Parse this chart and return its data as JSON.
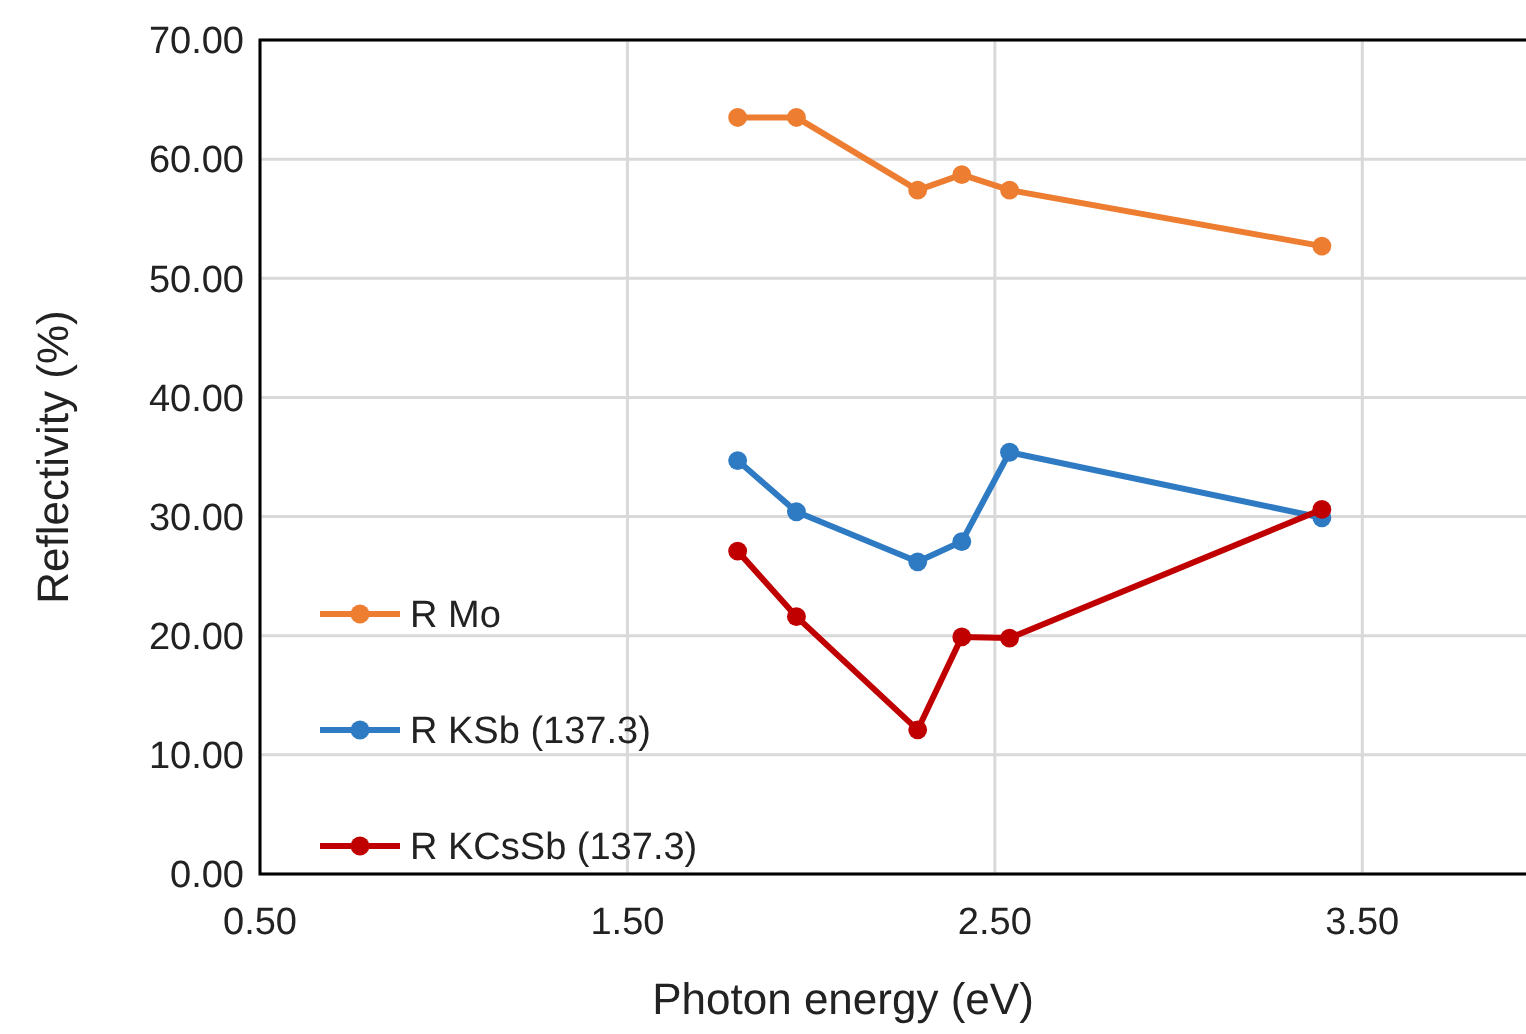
{
  "chart_data": {
    "type": "line",
    "xlabel": "Photon energy (eV)",
    "ylabel": "Reflectivity (%)",
    "x": [
      1.8,
      1.96,
      2.29,
      2.41,
      2.54,
      3.39
    ],
    "series": [
      {
        "name": "R Mo",
        "color": "#ed7d31",
        "values": [
          63.5,
          63.5,
          57.4,
          58.7,
          57.4,
          52.7
        ]
      },
      {
        "name": "R KSb (137.3)",
        "color": "#2e7bc4",
        "values": [
          34.7,
          30.4,
          26.2,
          27.9,
          35.4,
          29.9
        ]
      },
      {
        "name": "R KCsSb (137.3)",
        "color": "#c00000",
        "values": [
          27.1,
          21.6,
          12.1,
          19.9,
          19.8,
          30.6
        ]
      }
    ],
    "xlim": [
      0.5,
      4.0
    ],
    "xticks": [
      {
        "value": 0.5,
        "label": "0.50"
      },
      {
        "value": 1.5,
        "label": "1.50"
      },
      {
        "value": 2.5,
        "label": "2.50"
      },
      {
        "value": 3.5,
        "label": "3.50"
      }
    ],
    "ylim": [
      0,
      70
    ],
    "yticks": [
      {
        "value": 0,
        "label": "0.00"
      },
      {
        "value": 10,
        "label": "10.00"
      },
      {
        "value": 20,
        "label": "20.00"
      },
      {
        "value": 30,
        "label": "30.00"
      },
      {
        "value": 40,
        "label": "40.00"
      },
      {
        "value": 50,
        "label": "50.00"
      },
      {
        "value": 60,
        "label": "60.00"
      },
      {
        "value": 70,
        "label": "70.00"
      }
    ],
    "grid": true,
    "legend": "bottom left",
    "marker": "circle",
    "line_style": "solid"
  }
}
